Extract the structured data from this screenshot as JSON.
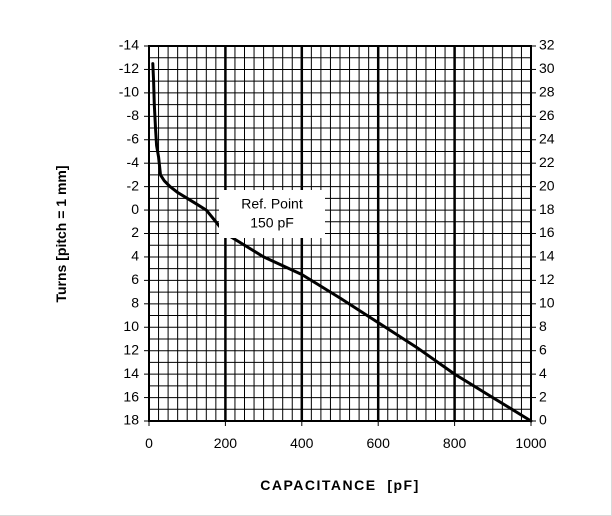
{
  "chart_data": {
    "type": "line",
    "xlabel": "CAPACITANCE  [pF]",
    "ylabel": "Turns [pitch = 1 mm]",
    "x_ticks": [
      "0",
      "200",
      "400",
      "600",
      "800",
      "1000"
    ],
    "y_left_ticks": [
      "-14",
      "-12",
      "-10",
      "-8",
      "-6",
      "-4",
      "-2",
      "0",
      "2",
      "4",
      "6",
      "8",
      "10",
      "12",
      "14",
      "16",
      "18"
    ],
    "y_right_ticks": [
      "32",
      "30",
      "28",
      "26",
      "24",
      "22",
      "20",
      "18",
      "16",
      "14",
      "12",
      "10",
      "8",
      "6",
      "4",
      "2",
      "0"
    ],
    "xlim": [
      0,
      1000
    ],
    "ylim_left": [
      -14,
      18
    ],
    "ylim_right": [
      0,
      32
    ],
    "y_left_inverted": true,
    "grid": true,
    "annotation": {
      "line1": "Ref. Point",
      "line2": "150 pF"
    },
    "series": [
      {
        "x": [
          10,
          12,
          14,
          17,
          20,
          25,
          30,
          40,
          55,
          75,
          100,
          125,
          150,
          200,
          300,
          400,
          500,
          600,
          700,
          800,
          900,
          1000
        ],
        "y": [
          -12.5,
          -11,
          -9,
          -7,
          -5.5,
          -4.5,
          -3,
          -2.5,
          -2,
          -1.5,
          -1,
          -0.5,
          0,
          2,
          4,
          5.5,
          7.5,
          9.6,
          11.7,
          14,
          16,
          18
        ]
      }
    ]
  }
}
